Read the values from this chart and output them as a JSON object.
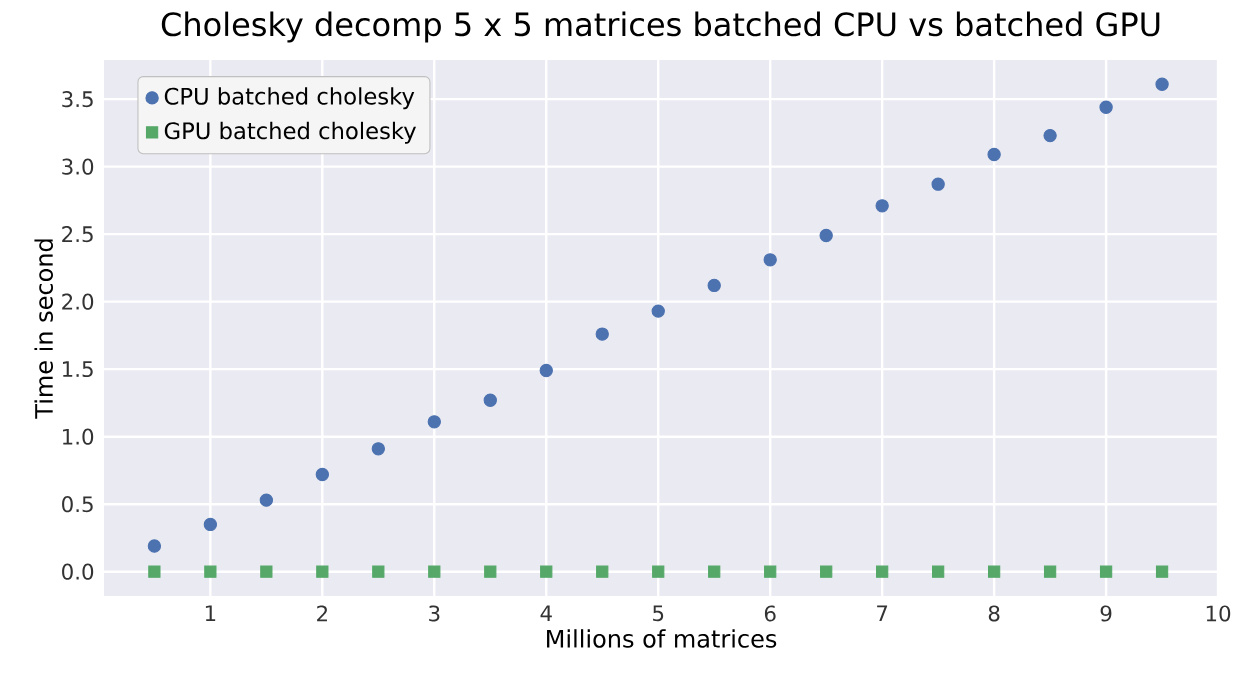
{
  "chart_data": {
    "type": "scatter",
    "title": "Cholesky decomp 5 x 5 matrices batched CPU vs batched GPU",
    "xlabel": "Millions of matrices",
    "ylabel": "Time in second",
    "x": [
      0.5,
      1,
      1.5,
      2,
      2.5,
      3,
      3.5,
      4,
      4.5,
      5,
      5.5,
      6,
      6.5,
      7,
      7.5,
      8,
      8.5,
      9,
      9.5
    ],
    "series": [
      {
        "name": "CPU batched cholesky",
        "color": "#4c72b0",
        "marker": "circle",
        "values": [
          0.19,
          0.35,
          0.53,
          0.72,
          0.91,
          1.11,
          1.27,
          1.49,
          1.76,
          1.93,
          2.12,
          2.31,
          2.49,
          2.71,
          2.87,
          3.09,
          3.23,
          3.44,
          3.61
        ]
      },
      {
        "name": "GPU batched cholesky",
        "color": "#55a868",
        "marker": "square",
        "values": [
          0,
          0,
          0,
          0,
          0,
          0,
          0,
          0,
          0,
          0,
          0,
          0,
          0,
          0,
          0,
          0,
          0,
          0,
          0
        ]
      }
    ],
    "xlim": [
      0.05,
      10
    ],
    "ylim": [
      -0.18,
      3.79
    ],
    "xticks": [
      1,
      2,
      3,
      4,
      5,
      6,
      7,
      8,
      9,
      10
    ],
    "yticks": [
      {
        "value": 0,
        "label": "0.0"
      },
      0.5,
      {
        "value": 1,
        "label": "1.0"
      },
      1.5,
      {
        "value": 2,
        "label": "2.0"
      },
      2.5,
      {
        "value": 3,
        "label": "3.0"
      },
      3.5
    ],
    "grid": true,
    "legend": "top left"
  }
}
